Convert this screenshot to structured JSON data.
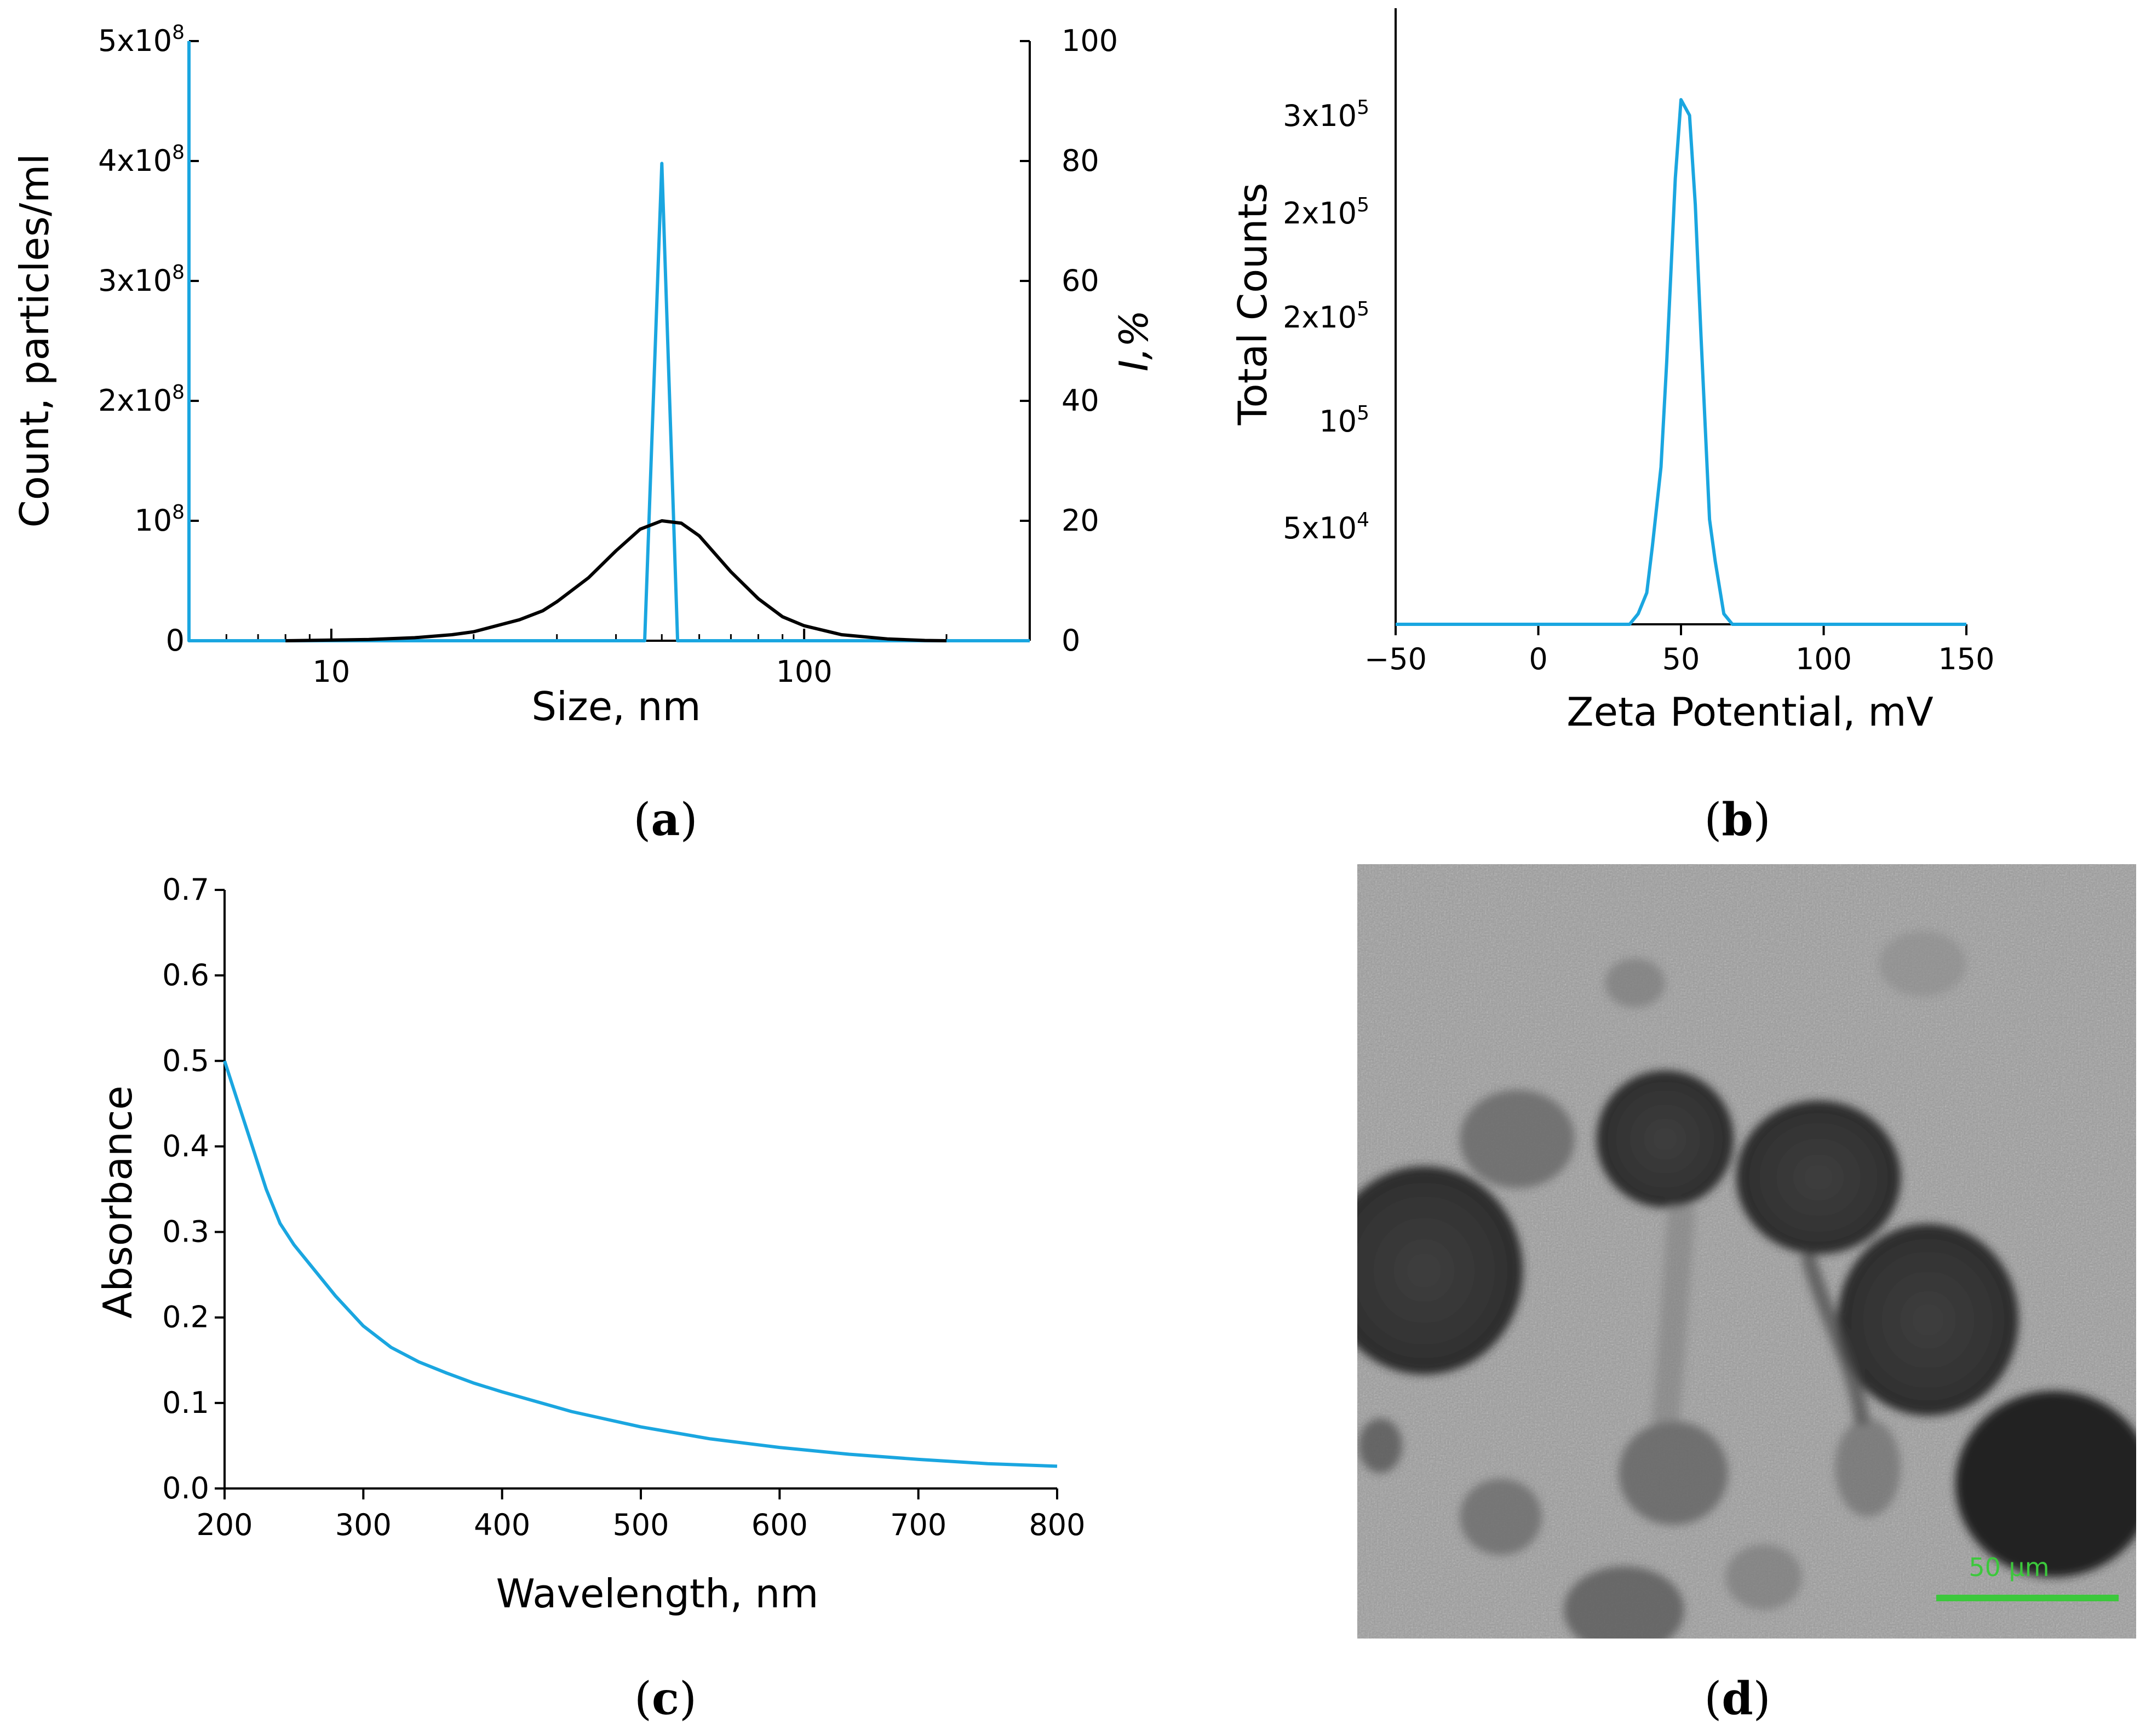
{
  "chart_data": [
    {
      "panel": "a",
      "type": "line",
      "xscale": "log",
      "xlabel": "Size, nm",
      "ylabel": "Count, particles/ml",
      "y2label": "I,%",
      "xlim": [
        5,
        300
      ],
      "ylim": [
        0,
        500000000
      ],
      "y2lim": [
        0,
        100
      ],
      "xticks": [
        {
          "v": 10,
          "label": "10"
        },
        {
          "v": 100,
          "label": "100"
        }
      ],
      "yticks": [
        {
          "v": 0,
          "base": "0",
          "exp": ""
        },
        {
          "v": 100000000,
          "base": "10",
          "exp": "8"
        },
        {
          "v": 200000000,
          "base": "2x10",
          "exp": "8"
        },
        {
          "v": 300000000,
          "base": "3x10",
          "exp": "8"
        },
        {
          "v": 400000000,
          "base": "4x10",
          "exp": "8"
        },
        {
          "v": 500000000,
          "base": "5x10",
          "exp": "8"
        }
      ],
      "y2ticks": [
        "0",
        "20",
        "40",
        "60",
        "80",
        "100"
      ],
      "series": [
        {
          "axis": "y",
          "color": "#1aa6e0",
          "x": [
            5,
            5,
            5.05,
            46,
            50,
            54,
            300
          ],
          "y": [
            500000000,
            0,
            0,
            0,
            398000000,
            0,
            0
          ]
        },
        {
          "axis": "y2",
          "color": "#000000",
          "x": [
            8,
            12,
            15,
            18,
            20,
            25,
            28,
            30,
            35,
            40,
            45,
            50,
            55,
            60,
            70,
            80,
            90,
            100,
            120,
            150,
            180,
            200
          ],
          "y": [
            0,
            0.2,
            0.5,
            1.0,
            1.5,
            3.5,
            5.0,
            6.5,
            10.5,
            15.0,
            18.6,
            20.0,
            19.6,
            17.5,
            11.5,
            7.0,
            4.0,
            2.5,
            1.0,
            0.3,
            0.05,
            0
          ]
        }
      ]
    },
    {
      "panel": "b",
      "type": "line",
      "xlabel": "Zeta Potential, mV",
      "ylabel": "Total Counts",
      "xlim": [
        -50,
        150
      ],
      "xticks": [
        "−50",
        "0",
        "50",
        "100",
        "150"
      ],
      "yticks": [
        {
          "base": "5x10",
          "exp": "4"
        },
        {
          "base": "10",
          "exp": "5"
        },
        {
          "base": "2x10",
          "exp": "5"
        },
        {
          "base": "2x10",
          "exp": "5"
        },
        {
          "base": "3x10",
          "exp": "5"
        }
      ],
      "series": [
        {
          "color": "#1aa6e0",
          "x": [
            -50,
            28,
            32,
            35,
            38,
            40,
            43,
            45,
            48,
            50,
            53,
            55,
            57,
            60,
            62,
            65,
            68,
            150
          ],
          "y": [
            0,
            0,
            0,
            0.02,
            0.06,
            0.15,
            0.3,
            0.5,
            0.85,
            1.0,
            0.97,
            0.8,
            0.55,
            0.2,
            0.12,
            0.02,
            0,
            0
          ]
        }
      ]
    },
    {
      "panel": "c",
      "type": "line",
      "xlabel": "Wavelength, nm",
      "ylabel": "Absorbance",
      "xlim": [
        200,
        800
      ],
      "ylim": [
        0,
        0.7
      ],
      "xticks": [
        "200",
        "300",
        "400",
        "500",
        "600",
        "700",
        "800"
      ],
      "yticks": [
        "0.0",
        "0.1",
        "0.2",
        "0.3",
        "0.4",
        "0.5",
        "0.6",
        "0.7"
      ],
      "series": [
        {
          "color": "#1aa6e0",
          "x": [
            200,
            210,
            220,
            230,
            240,
            250,
            260,
            280,
            300,
            320,
            340,
            360,
            380,
            400,
            450,
            500,
            550,
            600,
            650,
            700,
            750,
            800
          ],
          "y": [
            0.5,
            0.45,
            0.4,
            0.35,
            0.31,
            0.285,
            0.265,
            0.225,
            0.19,
            0.165,
            0.148,
            0.135,
            0.123,
            0.113,
            0.09,
            0.072,
            0.058,
            0.048,
            0.04,
            0.034,
            0.029,
            0.026
          ]
        }
      ]
    }
  ],
  "image_d": {
    "scale_bar": "50 µm"
  },
  "panel_labels": [
    "a",
    "b",
    "c",
    "d"
  ]
}
